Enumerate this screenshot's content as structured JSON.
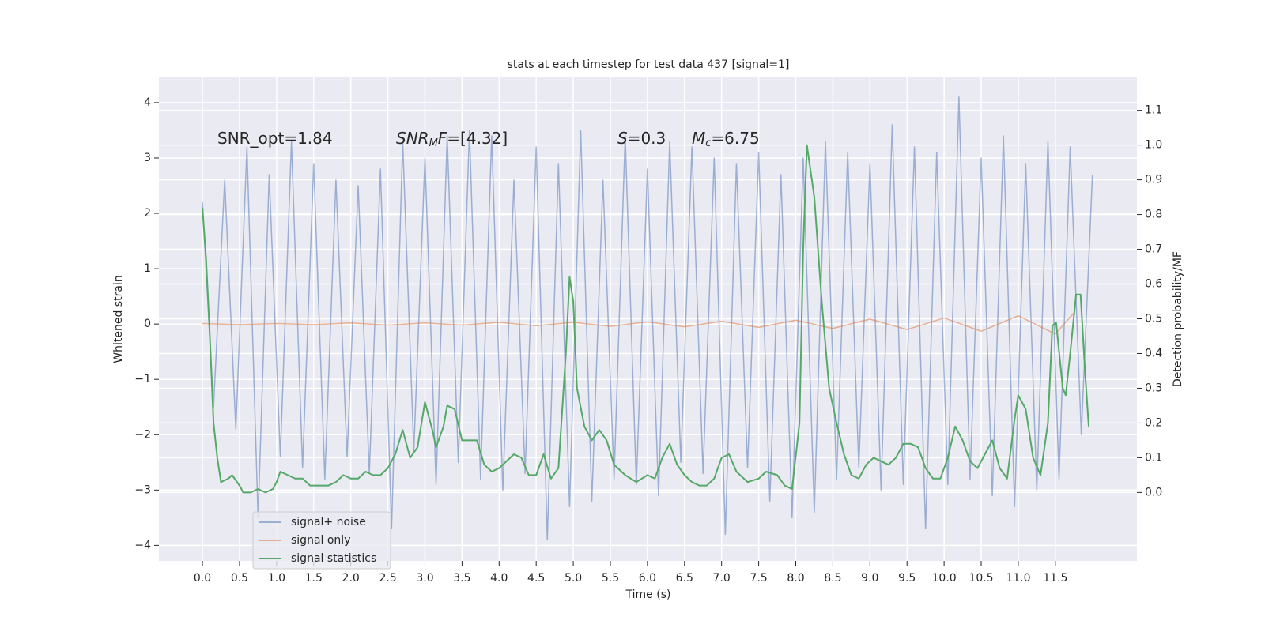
{
  "chart_data": {
    "type": "line",
    "title": "stats at each timestep for test data 437 [signal=1]",
    "xlabel": "Time (s)",
    "ylabel": "Whitened strain",
    "y2label": "Detection probability/MF",
    "background": "#eaeaf2",
    "grid": true,
    "legend": "lower left",
    "annotations": [
      [
        {
          "text": "SNR_opt=1.84",
          "style": "normal"
        }
      ],
      [
        {
          "text": "SNR",
          "style": "italic"
        },
        {
          "text": "M",
          "style": "sub"
        },
        {
          "text": "F",
          "style": "italic"
        },
        {
          "text": "=[4.32]",
          "style": "normal"
        }
      ],
      [
        {
          "text": "S",
          "style": "italic"
        },
        {
          "text": "=0.3",
          "style": "normal"
        }
      ],
      [
        {
          "text": "M",
          "style": "italic"
        },
        {
          "text": "c",
          "style": "sub"
        },
        {
          "text": "=6.75",
          "style": "normal"
        }
      ]
    ],
    "xlim": [
      -0.587,
      12.6
    ],
    "xticks": [
      {
        "value": 0,
        "label": "0.0"
      },
      0.5,
      {
        "value": 1,
        "label": "1.0"
      },
      1.5,
      {
        "value": 2,
        "label": "2.0"
      },
      2.5,
      {
        "value": 3,
        "label": "3.0"
      },
      3.5,
      {
        "value": 4,
        "label": "4.0"
      },
      4.5,
      {
        "value": 5,
        "label": "5.0"
      },
      5.5,
      {
        "value": 6,
        "label": "6.0"
      },
      6.5,
      {
        "value": 7,
        "label": "7.0"
      },
      7.5,
      {
        "value": 8,
        "label": "8.0"
      },
      8.5,
      {
        "value": 9,
        "label": "9.0"
      },
      9.5,
      {
        "value": 10,
        "label": "10.0"
      },
      10.5,
      {
        "value": 11,
        "label": "11.0"
      },
      11.5
    ],
    "ylim": [
      -4.28,
      4.47
    ],
    "yticks": [
      {
        "value": -4,
        "label": "−4"
      },
      {
        "value": -3,
        "label": "−3"
      },
      {
        "value": -2,
        "label": "−2"
      },
      {
        "value": -1,
        "label": "−1"
      },
      0,
      1,
      2,
      3,
      4
    ],
    "y2lim": [
      -0.197,
      1.197
    ],
    "y2ticks": [
      {
        "value": 0,
        "label": "0.0"
      },
      0.1,
      0.2,
      0.3,
      0.4,
      0.5,
      0.6,
      0.7,
      0.8,
      0.9,
      {
        "value": 1,
        "label": "1.0"
      },
      1.1
    ],
    "series": [
      {
        "name": "signal+ noise",
        "color": "#4c72b0",
        "opacity": 0.5,
        "x": [
          0,
          0.15,
          0.3,
          0.45,
          0.6,
          0.75,
          0.9,
          1.05,
          1.2,
          1.35,
          1.5,
          1.65,
          1.8,
          1.95,
          2.1,
          2.25,
          2.4,
          2.55,
          2.7,
          2.85,
          3,
          3.15,
          3.3,
          3.45,
          3.6,
          3.75,
          3.9,
          4.05,
          4.2,
          4.35,
          4.5,
          4.65,
          4.8,
          4.95,
          5.1,
          5.25,
          5.4,
          5.55,
          5.7,
          5.85,
          6,
          6.15,
          6.3,
          6.45,
          6.6,
          6.75,
          6.9,
          7.05,
          7.2,
          7.35,
          7.5,
          7.65,
          7.8,
          7.95,
          8.1,
          8.25,
          8.4,
          8.55,
          8.7,
          8.85,
          9,
          9.15,
          9.3,
          9.45,
          9.6,
          9.75,
          9.9,
          10.05,
          10.2,
          10.35,
          10.5,
          10.65,
          10.8,
          10.95,
          11.1,
          11.25,
          11.4,
          11.55,
          11.7,
          11.85,
          12
        ],
        "values": [
          2.2,
          -1.5,
          2.6,
          -1.9,
          3.2,
          -3.5,
          2.7,
          -2.4,
          3.3,
          -2.6,
          2.9,
          -2.8,
          2.6,
          -2.4,
          2.5,
          -2.7,
          2.8,
          -3.7,
          3.3,
          -2.3,
          3.0,
          -2.9,
          3.4,
          -2.5,
          3.5,
          -2.8,
          3.4,
          -3.0,
          2.6,
          -2.7,
          3.2,
          -3.9,
          2.9,
          -3.3,
          3.5,
          -3.2,
          2.6,
          -2.8,
          3.4,
          -2.9,
          2.8,
          -3.1,
          3.3,
          -2.5,
          3.2,
          -2.7,
          3.0,
          -3.8,
          2.9,
          -2.6,
          3.1,
          -3.2,
          2.7,
          -3.5,
          3.0,
          -3.4,
          3.3,
          -2.8,
          3.1,
          -2.6,
          2.9,
          -3.0,
          3.6,
          -2.9,
          3.2,
          -3.7,
          3.1,
          -2.9,
          4.1,
          -2.8,
          3.0,
          -3.1,
          3.4,
          -3.3,
          2.9,
          -3.0,
          3.3,
          -2.8,
          3.2,
          -2.0,
          2.7
        ]
      },
      {
        "name": "signal only",
        "color": "#dd8452",
        "opacity": 0.6,
        "x": [
          0,
          0.5,
          1,
          1.5,
          2,
          2.5,
          3,
          3.5,
          4,
          4.5,
          5,
          5.5,
          6,
          6.5,
          7,
          7.5,
          8,
          8.5,
          9,
          9.5,
          10,
          10.5,
          11,
          11.5,
          11.75
        ],
        "values": [
          0.01,
          -0.01,
          0.01,
          -0.01,
          0.02,
          -0.02,
          0.02,
          -0.02,
          0.03,
          -0.03,
          0.03,
          -0.04,
          0.04,
          -0.05,
          0.05,
          -0.06,
          0.07,
          -0.08,
          0.09,
          -0.1,
          0.11,
          -0.13,
          0.15,
          -0.18,
          0.2
        ]
      },
      {
        "name": "signal statistics",
        "color": "#55a868",
        "opacity": 1,
        "axis": "y2",
        "x": [
          0,
          0.05,
          0.1,
          0.15,
          0.2,
          0.25,
          0.35,
          0.4,
          0.5,
          0.55,
          0.65,
          0.75,
          0.85,
          0.95,
          1,
          1.05,
          1.15,
          1.25,
          1.35,
          1.45,
          1.55,
          1.7,
          1.8,
          1.9,
          2,
          2.1,
          2.2,
          2.3,
          2.4,
          2.5,
          2.6,
          2.7,
          2.8,
          2.9,
          3,
          3.1,
          3.15,
          3.25,
          3.3,
          3.4,
          3.5,
          3.6,
          3.7,
          3.8,
          3.9,
          4,
          4.1,
          4.2,
          4.3,
          4.4,
          4.5,
          4.6,
          4.7,
          4.8,
          4.9,
          4.95,
          5,
          5.05,
          5.15,
          5.25,
          5.35,
          5.45,
          5.55,
          5.7,
          5.85,
          6,
          6.1,
          6.2,
          6.3,
          6.4,
          6.5,
          6.6,
          6.7,
          6.8,
          6.9,
          7,
          7.1,
          7.2,
          7.35,
          7.5,
          7.6,
          7.75,
          7.85,
          7.95,
          8.05,
          8.1,
          8.15,
          8.25,
          8.35,
          8.45,
          8.55,
          8.65,
          8.75,
          8.85,
          8.95,
          9.05,
          9.15,
          9.25,
          9.35,
          9.45,
          9.55,
          9.65,
          9.75,
          9.85,
          9.95,
          10.05,
          10.15,
          10.25,
          10.35,
          10.45,
          10.55,
          10.65,
          10.75,
          10.85,
          10.95,
          11,
          11.1,
          11.2,
          11.3,
          11.4,
          11.46,
          11.51,
          11.6,
          11.64,
          11.7,
          11.78,
          11.84,
          11.9,
          11.95
        ],
        "values": [
          0.82,
          0.67,
          0.45,
          0.2,
          0.1,
          0.03,
          0.04,
          0.05,
          0.02,
          0,
          0,
          0.01,
          0,
          0.01,
          0.03,
          0.06,
          0.05,
          0.04,
          0.04,
          0.02,
          0.02,
          0.02,
          0.03,
          0.05,
          0.04,
          0.04,
          0.06,
          0.05,
          0.05,
          0.07,
          0.11,
          0.18,
          0.1,
          0.13,
          0.26,
          0.18,
          0.13,
          0.19,
          0.25,
          0.24,
          0.15,
          0.15,
          0.15,
          0.08,
          0.06,
          0.07,
          0.09,
          0.11,
          0.1,
          0.05,
          0.05,
          0.11,
          0.04,
          0.07,
          0.4,
          0.62,
          0.55,
          0.3,
          0.19,
          0.15,
          0.18,
          0.15,
          0.08,
          0.05,
          0.03,
          0.05,
          0.04,
          0.1,
          0.14,
          0.08,
          0.05,
          0.03,
          0.02,
          0.02,
          0.04,
          0.1,
          0.11,
          0.06,
          0.03,
          0.04,
          0.06,
          0.05,
          0.02,
          0.01,
          0.2,
          0.7,
          1.0,
          0.85,
          0.55,
          0.3,
          0.2,
          0.11,
          0.05,
          0.04,
          0.08,
          0.1,
          0.09,
          0.08,
          0.1,
          0.14,
          0.14,
          0.13,
          0.07,
          0.04,
          0.04,
          0.1,
          0.19,
          0.15,
          0.09,
          0.07,
          0.11,
          0.15,
          0.07,
          0.04,
          0.21,
          0.28,
          0.24,
          0.1,
          0.05,
          0.2,
          0.48,
          0.49,
          0.3,
          0.28,
          0.4,
          0.57,
          0.57,
          0.35,
          0.19
        ]
      }
    ]
  }
}
